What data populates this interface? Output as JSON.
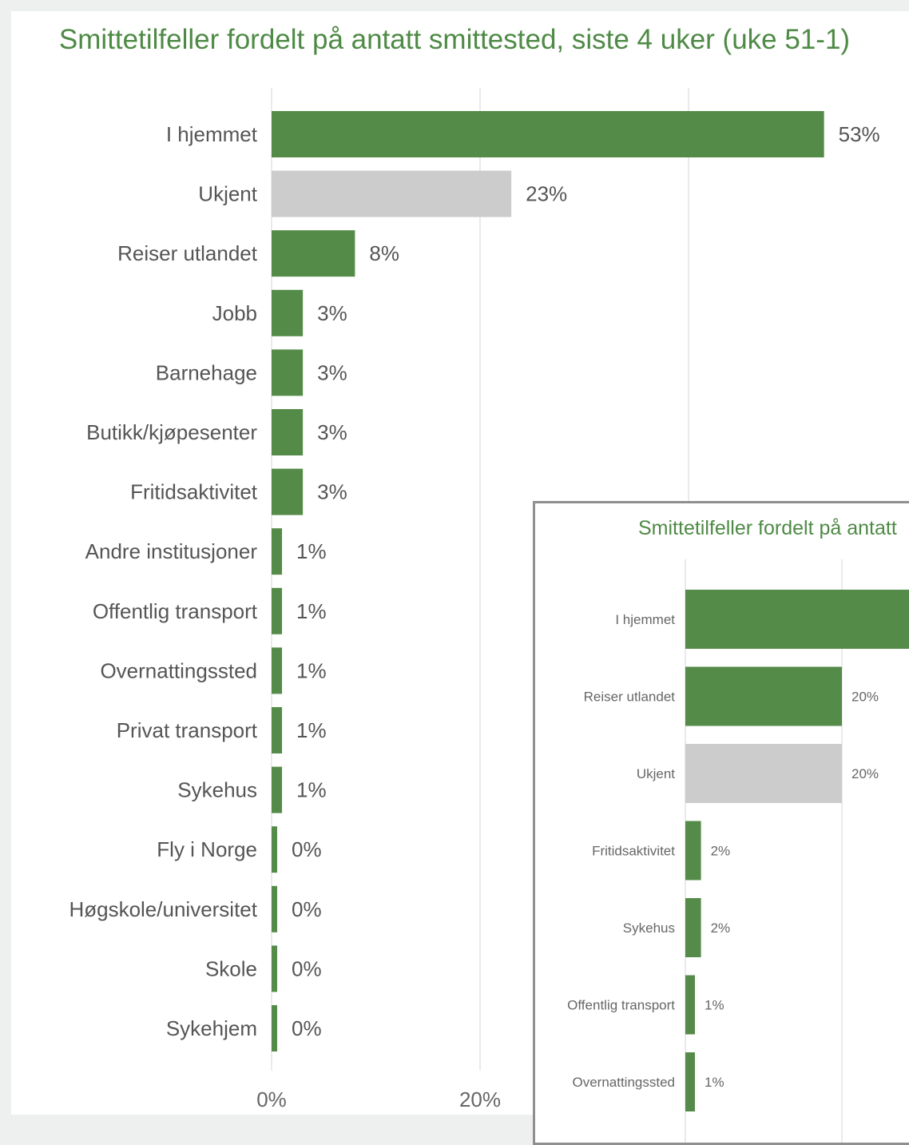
{
  "chart_data": [
    {
      "type": "bar",
      "orientation": "horizontal",
      "title": "Smittetilfeller fordelt på antatt smittested, siste 4 uker (uke 51-1)",
      "categories": [
        "I hjemmet",
        "Ukjent",
        "Reiser utlandet",
        "Jobb",
        "Barnehage",
        "Butikk/kjøpesenter",
        "Fritidsaktivitet",
        "Andre institusjoner",
        "Offentlig transport",
        "Overnattingssted",
        "Privat transport",
        "Sykehus",
        "Fly i Norge",
        "Høgskole/universitet",
        "Skole",
        "Sykehjem"
      ],
      "values": [
        53,
        23,
        8,
        3,
        3,
        3,
        3,
        1,
        1,
        1,
        1,
        1,
        0,
        0,
        0,
        0
      ],
      "value_labels": [
        "53%",
        "23%",
        "8%",
        "3%",
        "3%",
        "3%",
        "3%",
        "1%",
        "1%",
        "1%",
        "1%",
        "1%",
        "0%",
        "0%",
        "0%",
        "0%"
      ],
      "colors": [
        "#558b48",
        "#cccccc",
        "#558b48",
        "#558b48",
        "#558b48",
        "#558b48",
        "#558b48",
        "#558b48",
        "#558b48",
        "#558b48",
        "#558b48",
        "#558b48",
        "#558b48",
        "#558b48",
        "#558b48",
        "#558b48"
      ],
      "x_ticks": [
        "0%",
        "20%"
      ],
      "xlim": [
        0,
        60
      ],
      "grid": true
    },
    {
      "type": "bar",
      "orientation": "horizontal",
      "title": "Smittetilfeller fordelt på antatt",
      "categories": [
        "I hjemmet",
        "Reiser utlandet",
        "Ukjent",
        "Fritidsaktivitet",
        "Sykehus",
        "Offentlig transport",
        "Overnattingssted"
      ],
      "values": [
        null,
        20,
        20,
        2,
        2,
        1,
        1
      ],
      "value_labels": [
        "",
        "20%",
        "20%",
        "2%",
        "2%",
        "1%",
        "1%"
      ],
      "colors": [
        "#558b48",
        "#558b48",
        "#cccccc",
        "#558b48",
        "#558b48",
        "#558b48",
        "#558b48"
      ],
      "grid": true
    }
  ]
}
